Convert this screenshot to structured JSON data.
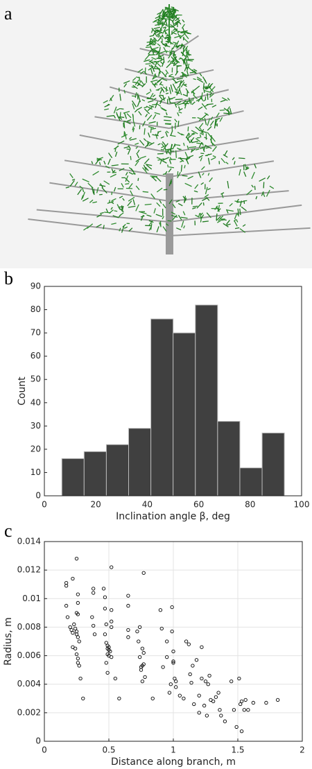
{
  "panel_labels": [
    "a",
    "b",
    "c"
  ],
  "chart_data": [
    {
      "type": "histogram",
      "bins": [
        6.8,
        15.45,
        24.1,
        32.75,
        41.4,
        50.05,
        58.7,
        67.35,
        76.0,
        84.65,
        93.3
      ],
      "values": [
        16,
        19,
        22,
        29,
        76,
        70,
        82,
        32,
        12,
        27
      ],
      "color": "#404040",
      "xlim": [
        0,
        100
      ],
      "xticks": [
        0,
        20,
        40,
        60,
        80,
        100
      ],
      "ylim": [
        0,
        90
      ],
      "yticks": [
        0,
        10,
        20,
        30,
        40,
        50,
        60,
        70,
        80,
        90
      ],
      "xlabel": "Inclination angle β, deg",
      "ylabel": "Count",
      "grid": false
    },
    {
      "type": "scatter",
      "x": [
        0.17,
        0.17,
        0.17,
        0.18,
        0.22,
        0.25,
        0.26,
        0.26,
        0.2,
        0.21,
        0.22,
        0.23,
        0.24,
        0.25,
        0.25,
        0.26,
        0.27,
        0.22,
        0.24,
        0.25,
        0.26,
        0.26,
        0.27,
        0.28,
        0.3,
        0.25,
        0.26,
        0.38,
        0.38,
        0.37,
        0.38,
        0.39,
        0.46,
        0.47,
        0.47,
        0.48,
        0.47,
        0.48,
        0.49,
        0.5,
        0.49,
        0.5,
        0.51,
        0.49,
        0.5,
        0.52,
        0.48,
        0.49,
        0.52,
        0.52,
        0.52,
        0.52,
        0.55,
        0.58,
        0.65,
        0.65,
        0.65,
        0.65,
        0.72,
        0.73,
        0.74,
        0.75,
        0.75,
        0.76,
        0.77,
        0.77,
        0.74,
        0.76,
        0.77,
        0.76,
        0.78,
        0.84,
        0.9,
        0.91,
        0.92,
        0.95,
        0.95,
        0.97,
        0.98,
        0.99,
        0.99,
        1.0,
        1.0,
        1.0,
        1.01,
        1.02,
        1.02,
        1.05,
        1.08,
        1.1,
        1.12,
        1.13,
        1.14,
        1.15,
        1.16,
        1.18,
        1.2,
        1.2,
        1.22,
        1.22,
        1.24,
        1.25,
        1.26,
        1.27,
        1.28,
        1.29,
        1.31,
        1.33,
        1.35,
        1.36,
        1.37,
        1.4,
        1.45,
        1.47,
        1.49,
        1.51,
        1.52,
        1.53,
        1.53,
        1.55,
        1.56,
        1.58,
        1.62,
        1.72,
        1.81
      ],
      "values": [
        0.0111,
        0.0109,
        0.0095,
        0.0087,
        0.0114,
        0.0128,
        0.0103,
        0.0097,
        0.008,
        0.0078,
        0.0076,
        0.0082,
        0.0079,
        0.0077,
        0.0075,
        0.0073,
        0.007,
        0.0066,
        0.0065,
        0.0061,
        0.0058,
        0.0055,
        0.0053,
        0.0044,
        0.003,
        0.009,
        0.0089,
        0.0107,
        0.0104,
        0.0087,
        0.0081,
        0.0075,
        0.0107,
        0.0101,
        0.0093,
        0.0082,
        0.0075,
        0.0069,
        0.0067,
        0.0066,
        0.0065,
        0.0064,
        0.0063,
        0.0061,
        0.006,
        0.0059,
        0.0055,
        0.0048,
        0.0122,
        0.0092,
        0.0084,
        0.008,
        0.0044,
        0.003,
        0.0102,
        0.0095,
        0.0078,
        0.0073,
        0.0077,
        0.007,
        0.0059,
        0.0052,
        0.005,
        0.0053,
        0.0054,
        0.0118,
        0.008,
        0.0065,
        0.0062,
        0.0042,
        0.0045,
        0.003,
        0.0092,
        0.0079,
        0.0052,
        0.007,
        0.0059,
        0.0034,
        0.004,
        0.0094,
        0.0077,
        0.0063,
        0.0056,
        0.0055,
        0.0044,
        0.0038,
        0.0042,
        0.0032,
        0.003,
        0.007,
        0.0068,
        0.0047,
        0.0041,
        0.0053,
        0.0026,
        0.0057,
        0.002,
        0.0032,
        0.0044,
        0.0066,
        0.0025,
        0.0042,
        0.0018,
        0.004,
        0.0046,
        0.0029,
        0.0028,
        0.0031,
        0.0034,
        0.0022,
        0.0018,
        0.0014,
        0.0042,
        0.0022,
        0.001,
        0.0044,
        0.0026,
        0.0028,
        0.0007,
        0.0022,
        0.0029,
        0.0022,
        0.0027,
        0.0027,
        0.0029
      ],
      "color": "#000000",
      "xlim": [
        0,
        2
      ],
      "xticks": [
        0,
        0.5,
        1,
        1.5,
        2
      ],
      "ylim": [
        0,
        0.014
      ],
      "yticks": [
        0,
        0.002,
        0.004,
        0.006,
        0.008,
        0.01,
        0.012,
        0.014
      ],
      "xlabel": "Distance along branch, m",
      "ylabel": "Radius, m",
      "grid": true
    }
  ]
}
